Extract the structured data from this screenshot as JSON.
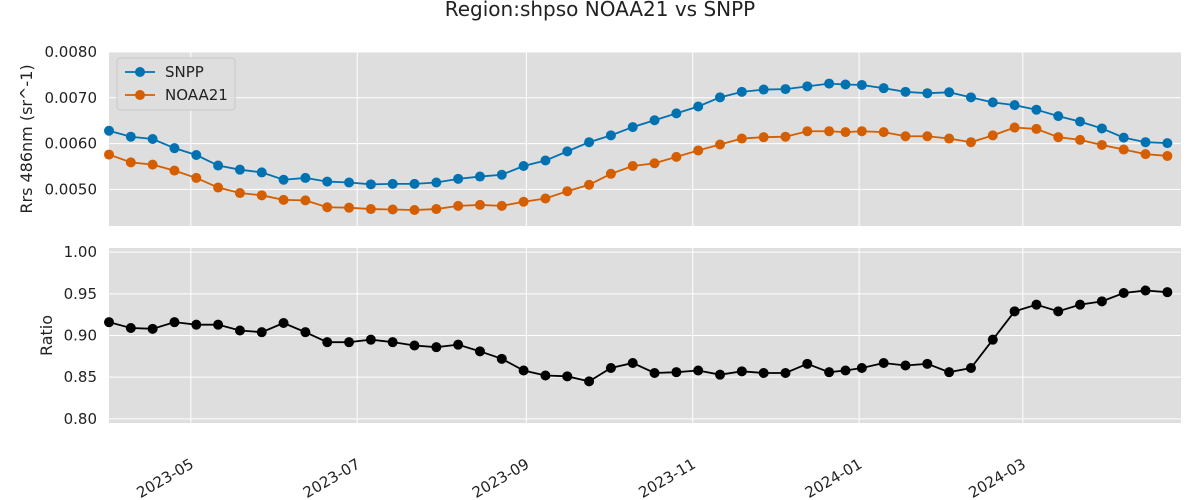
{
  "title": "Region:shpso NOAA21 vs SNPP",
  "colors": {
    "background": "#dedede",
    "grid": "#ffffff",
    "snpp": "#0072b2",
    "noaa21": "#d55e00",
    "ratio": "#000000"
  },
  "chart_data": [
    {
      "type": "line",
      "title": "Region:shpso NOAA21 vs SNPP",
      "ylabel": "Rrs 486nm (sr^-1)",
      "xlabel": "",
      "ylim": [
        0.0042,
        0.008
      ],
      "xlim": [
        "2023-04-01",
        "2024-04-28"
      ],
      "yticks": [
        "0.0050",
        "0.0060",
        "0.0070",
        "0.0080"
      ],
      "grid": true,
      "legend": "upper-left",
      "x": [
        "2023-04-01",
        "2023-04-09",
        "2023-04-17",
        "2023-04-25",
        "2023-05-03",
        "2023-05-11",
        "2023-05-19",
        "2023-05-27",
        "2023-06-04",
        "2023-06-12",
        "2023-06-20",
        "2023-06-28",
        "2023-07-06",
        "2023-07-14",
        "2023-07-22",
        "2023-07-30",
        "2023-08-07",
        "2023-08-15",
        "2023-08-23",
        "2023-08-31",
        "2023-09-08",
        "2023-09-16",
        "2023-09-24",
        "2023-10-02",
        "2023-10-10",
        "2023-10-18",
        "2023-10-26",
        "2023-11-03",
        "2023-11-11",
        "2023-11-19",
        "2023-11-27",
        "2023-12-05",
        "2023-12-13",
        "2023-12-21",
        "2023-12-27",
        "2024-01-02",
        "2024-01-10",
        "2024-01-18",
        "2024-01-26",
        "2024-02-03",
        "2024-02-11",
        "2024-02-19",
        "2024-02-27",
        "2024-03-06",
        "2024-03-14",
        "2024-03-22",
        "2024-03-30",
        "2024-04-07",
        "2024-04-15",
        "2024-04-23"
      ],
      "series": [
        {
          "name": "SNPP",
          "color": "#0072b2",
          "values": [
            0.00628,
            0.00615,
            0.0061,
            0.0059,
            0.00575,
            0.00552,
            0.00543,
            0.00537,
            0.00521,
            0.00525,
            0.00517,
            0.00515,
            0.00511,
            0.00512,
            0.00512,
            0.00515,
            0.00523,
            0.00528,
            0.00532,
            0.00551,
            0.00563,
            0.00583,
            0.00603,
            0.00618,
            0.00636,
            0.00651,
            0.00666,
            0.00681,
            0.00701,
            0.00713,
            0.00718,
            0.00719,
            0.00725,
            0.00731,
            0.00729,
            0.00728,
            0.00721,
            0.00713,
            0.0071,
            0.00712,
            0.00701,
            0.0069,
            0.00684,
            0.00674,
            0.0066,
            0.00648,
            0.00633,
            0.00613,
            0.00603,
            0.00601
          ]
        },
        {
          "name": "NOAA21",
          "color": "#d55e00",
          "values": [
            0.00576,
            0.00559,
            0.00554,
            0.00541,
            0.00525,
            0.00504,
            0.00492,
            0.00487,
            0.00477,
            0.00476,
            0.00461,
            0.0046,
            0.00457,
            0.00456,
            0.00455,
            0.00457,
            0.00464,
            0.00466,
            0.00464,
            0.00473,
            0.0048,
            0.00496,
            0.0051,
            0.00534,
            0.00551,
            0.00557,
            0.00571,
            0.00585,
            0.00598,
            0.00611,
            0.00614,
            0.00615,
            0.00627,
            0.00627,
            0.00625,
            0.00627,
            0.00625,
            0.00616,
            0.00616,
            0.00611,
            0.00603,
            0.00618,
            0.00635,
            0.00632,
            0.00614,
            0.00608,
            0.00597,
            0.00587,
            0.00577,
            0.00573
          ]
        }
      ]
    },
    {
      "type": "line",
      "ylabel": "Ratio",
      "xlabel": "",
      "ylim": [
        0.795,
        1.005
      ],
      "xlim": [
        "2023-04-01",
        "2024-04-28"
      ],
      "yticks": [
        "0.80",
        "0.85",
        "0.90",
        "0.95",
        "1.00"
      ],
      "xticks": [
        "2023-05",
        "2023-07",
        "2023-09",
        "2023-11",
        "2024-01",
        "2024-03"
      ],
      "grid": true,
      "x": [
        "2023-04-01",
        "2023-04-09",
        "2023-04-17",
        "2023-04-25",
        "2023-05-03",
        "2023-05-11",
        "2023-05-19",
        "2023-05-27",
        "2023-06-04",
        "2023-06-12",
        "2023-06-20",
        "2023-06-28",
        "2023-07-06",
        "2023-07-14",
        "2023-07-22",
        "2023-07-30",
        "2023-08-07",
        "2023-08-15",
        "2023-08-23",
        "2023-08-31",
        "2023-09-08",
        "2023-09-16",
        "2023-09-24",
        "2023-10-02",
        "2023-10-10",
        "2023-10-18",
        "2023-10-26",
        "2023-11-03",
        "2023-11-11",
        "2023-11-19",
        "2023-11-27",
        "2023-12-05",
        "2023-12-13",
        "2023-12-21",
        "2023-12-27",
        "2024-01-02",
        "2024-01-10",
        "2024-01-18",
        "2024-01-26",
        "2024-02-03",
        "2024-02-11",
        "2024-02-19",
        "2024-02-27",
        "2024-03-06",
        "2024-03-14",
        "2024-03-22",
        "2024-03-30",
        "2024-04-07",
        "2024-04-15",
        "2024-04-23"
      ],
      "series": [
        {
          "color": "#000000",
          "values": [
            0.916,
            0.909,
            0.908,
            0.916,
            0.913,
            0.913,
            0.906,
            0.904,
            0.915,
            0.904,
            0.892,
            0.892,
            0.895,
            0.892,
            0.888,
            0.886,
            0.889,
            0.881,
            0.872,
            0.858,
            0.852,
            0.851,
            0.845,
            0.861,
            0.867,
            0.855,
            0.856,
            0.858,
            0.853,
            0.857,
            0.855,
            0.855,
            0.866,
            0.856,
            0.858,
            0.861,
            0.867,
            0.864,
            0.866,
            0.856,
            0.861,
            0.895,
            0.929,
            0.937,
            0.929,
            0.937,
            0.941,
            0.951,
            0.954,
            0.952
          ]
        }
      ]
    }
  ]
}
